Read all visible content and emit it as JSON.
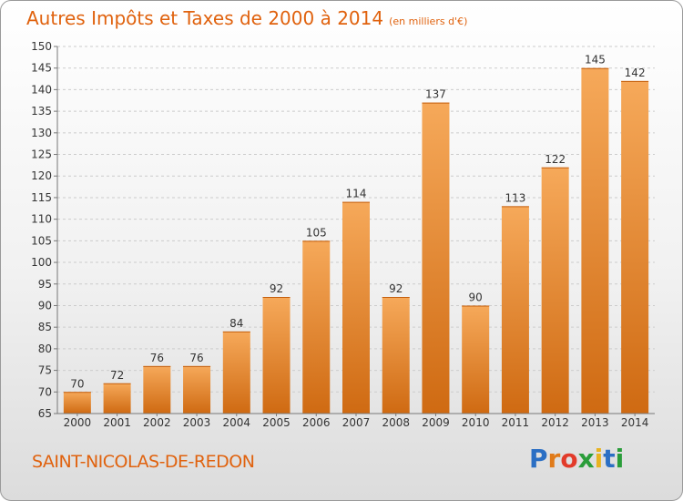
{
  "header": {
    "title": "Autres Impôts et Taxes de 2000 à 2014",
    "unit": "(en milliers d'€)"
  },
  "footer": {
    "town": "SAINT-NICOLAS-DE-REDON",
    "logo_letters": [
      "P",
      "r",
      "o",
      "x",
      "i",
      "t",
      "i"
    ],
    "logo_colors": [
      "#2b6fc4",
      "#e07b1a",
      "#e23b2a",
      "#2a9d3a",
      "#e8b321",
      "#2b6fc4",
      "#2a9d3a"
    ]
  },
  "colors": {
    "bar_light": "#f6a95a",
    "bar_dark": "#cf6a12",
    "grid": "#cccccc",
    "axis": "#777777"
  },
  "chart_data": {
    "type": "bar",
    "title": "Autres Impôts et Taxes de 2000 à 2014",
    "categories": [
      "2000",
      "2001",
      "2002",
      "2003",
      "2004",
      "2005",
      "2006",
      "2007",
      "2008",
      "2009",
      "2010",
      "2011",
      "2012",
      "2013",
      "2014"
    ],
    "values": [
      70,
      72,
      76,
      76,
      84,
      92,
      105,
      114,
      92,
      137,
      90,
      113,
      122,
      145,
      142
    ],
    "data_labels": [
      "70",
      "72",
      "76",
      "76",
      "84",
      "92",
      "105",
      "114",
      "92",
      "137",
      "90",
      "113",
      "122",
      "145",
      "142"
    ],
    "ylim": [
      65,
      150
    ],
    "yticks": [
      65,
      70,
      75,
      80,
      85,
      90,
      95,
      100,
      105,
      110,
      115,
      120,
      125,
      130,
      135,
      140,
      145,
      150
    ],
    "ytick_labels": [
      "65",
      "70",
      "75",
      "80",
      "85",
      "90",
      "95",
      "100",
      "105",
      "110",
      "115",
      "120",
      "125",
      "130",
      "135",
      "140",
      "145",
      "150"
    ],
    "grid": true,
    "legend": "none"
  }
}
